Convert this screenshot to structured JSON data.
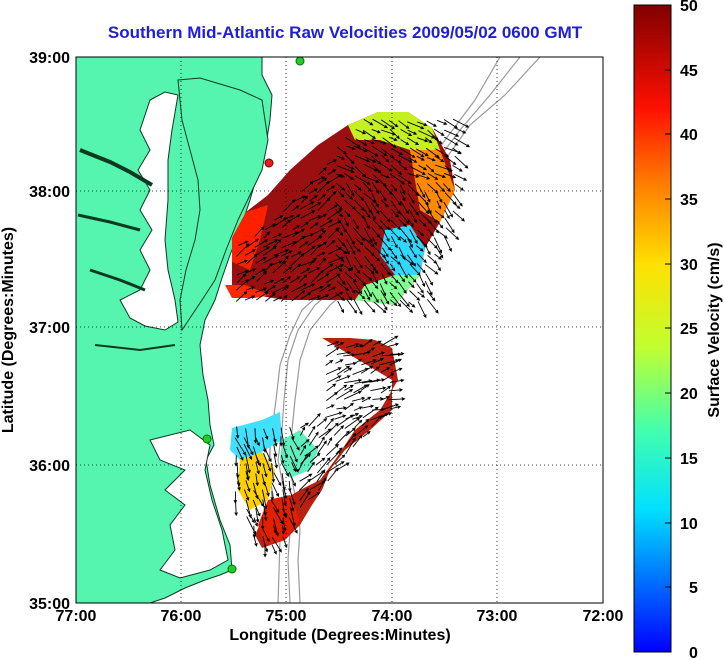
{
  "title": "Southern Mid-Atlantic Raw Velocities 2009/05/02 0600 GMT",
  "xlabel": "Longitude (Degrees:Minutes)",
  "ylabel": "Latitude (Degrees:Minutes)",
  "colorbar_label": "Surface Velocity (cm/s)",
  "x_ticks": [
    "77:00",
    "76:00",
    "75:00",
    "74:00",
    "73:00",
    "72:00"
  ],
  "y_ticks": [
    "39:00",
    "38:00",
    "37:00",
    "36:00",
    "35:00"
  ],
  "colorbar_ticks": [
    "50",
    "45",
    "40",
    "35",
    "30",
    "25",
    "20",
    "15",
    "10",
    "5",
    "0"
  ],
  "colors": {
    "land": "#55f5b0",
    "title": "#1f1fd6",
    "bathymetry": "#9a9a9a",
    "station": "#22cc22"
  },
  "map_extent": {
    "lon_west": -77.0,
    "lon_east": -72.0,
    "lat_south": 35.0,
    "lat_north": 39.0
  },
  "colorbar_range": [
    0,
    50
  ],
  "grid": true
}
